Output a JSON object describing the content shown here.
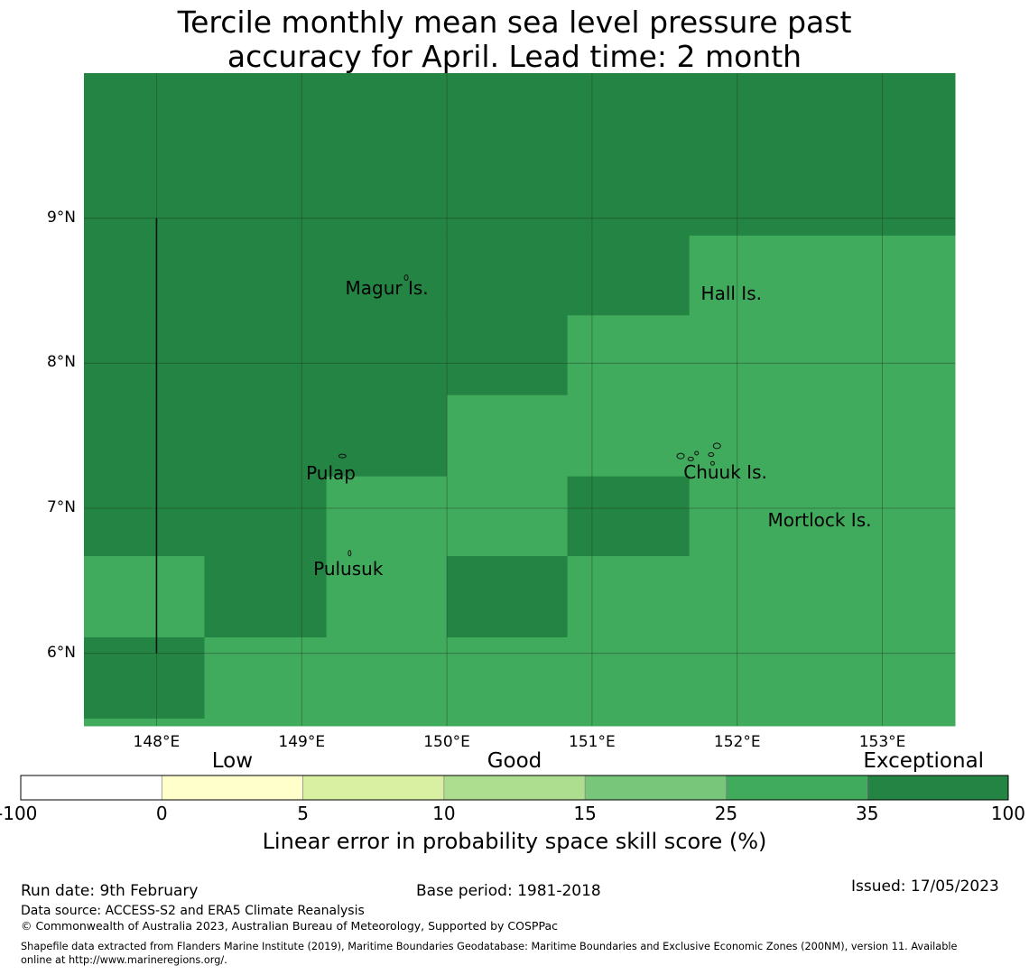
{
  "title_line1": "Tercile monthly mean sea level pressure past",
  "title_line2": "accuracy for April. Lead time: 2 month",
  "map": {
    "lon_range": [
      147.5,
      153.5
    ],
    "lat_range": [
      5.5,
      10.0
    ],
    "lon_ticks": [
      {
        "value": 148,
        "label": "148°E"
      },
      {
        "value": 149,
        "label": "149°E"
      },
      {
        "value": 150,
        "label": "150°E"
      },
      {
        "value": 151,
        "label": "151°E"
      },
      {
        "value": 152,
        "label": "152°E"
      },
      {
        "value": 153,
        "label": "153°E"
      }
    ],
    "lat_ticks": [
      {
        "value": 9,
        "label": "9°N"
      },
      {
        "value": 8,
        "label": "8°N"
      },
      {
        "value": 7,
        "label": "7°N"
      },
      {
        "value": 6,
        "label": "6°N"
      }
    ],
    "colors": {
      "high": "#238443",
      "mid": "#41ab5d",
      "grid": "#1f3f26",
      "boundary": "#111111"
    },
    "cells": [
      {
        "lon": [
          147.5,
          153.5
        ],
        "lat": [
          8.88,
          10.0
        ],
        "class": "high"
      },
      {
        "lon": [
          147.5,
          151.67
        ],
        "lat": [
          8.33,
          8.88
        ],
        "class": "high"
      },
      {
        "lon": [
          151.67,
          153.5
        ],
        "lat": [
          8.33,
          8.88
        ],
        "class": "mid"
      },
      {
        "lon": [
          147.5,
          150.83
        ],
        "lat": [
          7.78,
          8.33
        ],
        "class": "high"
      },
      {
        "lon": [
          150.83,
          153.5
        ],
        "lat": [
          7.78,
          8.33
        ],
        "class": "mid"
      },
      {
        "lon": [
          147.5,
          150.0
        ],
        "lat": [
          7.22,
          7.78
        ],
        "class": "high"
      },
      {
        "lon": [
          150.0,
          153.5
        ],
        "lat": [
          7.22,
          7.78
        ],
        "class": "mid"
      },
      {
        "lon": [
          147.5,
          149.17
        ],
        "lat": [
          6.67,
          7.22
        ],
        "class": "high"
      },
      {
        "lon": [
          149.17,
          150.83
        ],
        "lat": [
          6.67,
          7.22
        ],
        "class": "mid"
      },
      {
        "lon": [
          150.83,
          151.67
        ],
        "lat": [
          6.67,
          7.22
        ],
        "class": "high"
      },
      {
        "lon": [
          151.67,
          153.5
        ],
        "lat": [
          6.67,
          7.22
        ],
        "class": "mid"
      },
      {
        "lon": [
          147.5,
          148.33
        ],
        "lat": [
          6.11,
          6.67
        ],
        "class": "mid"
      },
      {
        "lon": [
          148.33,
          149.17
        ],
        "lat": [
          6.11,
          6.67
        ],
        "class": "high"
      },
      {
        "lon": [
          149.17,
          150.0
        ],
        "lat": [
          6.11,
          6.67
        ],
        "class": "mid"
      },
      {
        "lon": [
          150.0,
          150.83
        ],
        "lat": [
          6.11,
          6.67
        ],
        "class": "high"
      },
      {
        "lon": [
          150.83,
          153.5
        ],
        "lat": [
          6.11,
          6.67
        ],
        "class": "mid"
      },
      {
        "lon": [
          147.5,
          148.33
        ],
        "lat": [
          5.55,
          6.11
        ],
        "class": "high"
      },
      {
        "lon": [
          148.33,
          153.5
        ],
        "lat": [
          5.5,
          6.11
        ],
        "class": "mid"
      },
      {
        "lon": [
          147.5,
          148.33
        ],
        "lat": [
          5.5,
          5.55
        ],
        "class": "mid"
      }
    ],
    "boundary_line": {
      "lon": 148.0,
      "lat": [
        6.0,
        9.0
      ]
    },
    "places": [
      {
        "name": "Magur Is.",
        "lon": 149.3,
        "lat": 8.52
      },
      {
        "name": "Hall Is.",
        "lon": 151.75,
        "lat": 8.48
      },
      {
        "name": "Pulap",
        "lon": 149.03,
        "lat": 7.24
      },
      {
        "name": "Chuuk Is.",
        "lon": 151.63,
        "lat": 7.25
      },
      {
        "name": "Mortlock Is.",
        "lon": 152.21,
        "lat": 6.92
      },
      {
        "name": "Pulusuk",
        "lon": 149.08,
        "lat": 6.58
      }
    ]
  },
  "colorbar": {
    "categories": [
      {
        "label": "Low",
        "pos": 1.5
      },
      {
        "label": "Good",
        "pos": 3.5
      },
      {
        "label": "Exceptional",
        "pos": 6.4
      }
    ],
    "ticks": [
      "-100",
      "0",
      "5",
      "10",
      "15",
      "25",
      "35",
      "100"
    ],
    "colors": [
      "#ffffff",
      "#ffffcc",
      "#d9f0a3",
      "#addd8e",
      "#78c679",
      "#41ab5d",
      "#238443"
    ],
    "label": "Linear error in probability space skill score (%)"
  },
  "footer": {
    "run_date": "Run date: 9th February",
    "base_period": "Base period: 1981-2018",
    "issued": "Issued: 17/05/2023",
    "data_source": "Data source: ACCESS-S2 and ERA5 Climate Reanalysis",
    "copyright": "© Commonwealth of Australia 2023, Australian Bureau of Meteorology, Supported by COSPPac",
    "shapefile_line1": "Shapefile data extracted from Flanders Marine Institute (2019), Maritime Boundaries Geodatabase: Maritime Boundaries and Exclusive Economic Zones (200NM), version 11. Available",
    "shapefile_line2": "online at http://www.marineregions.org/."
  }
}
